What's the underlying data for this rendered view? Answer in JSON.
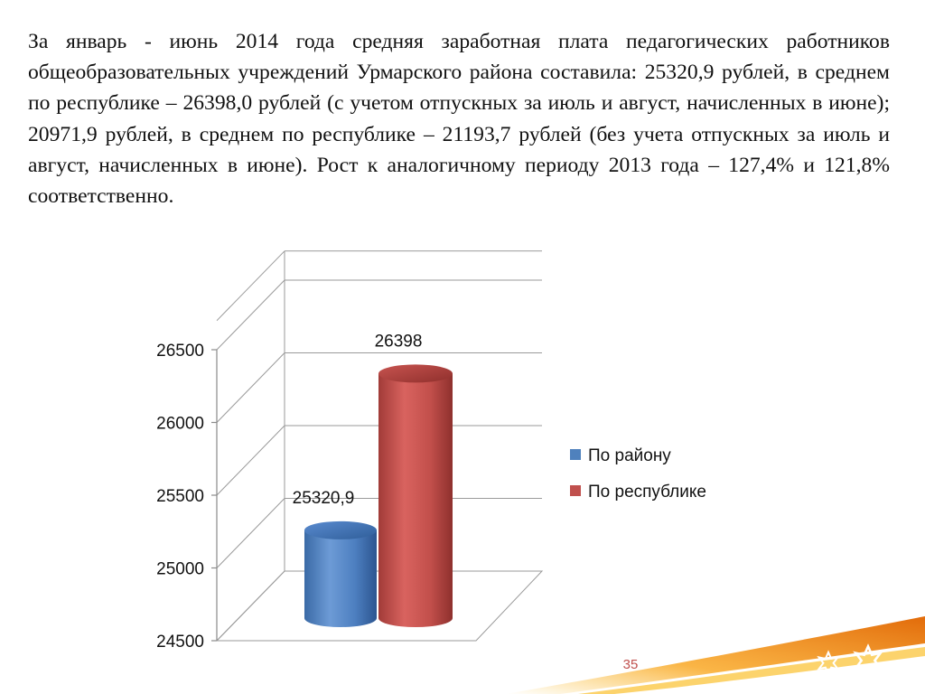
{
  "paragraph": "За январь - июнь 2014 года средняя заработная плата педагогических работников общеобразовательных учреждений Урмарского района составила: 25320,9 рублей, в среднем по республике – 26398,0 рублей (с учетом отпускных за июль и август, начисленных в июне); 20971,9 рублей, в среднем по республике – 21193,7 рублей (без учета отпускных за июль и август, начисленных в июне). Рост к аналогичному периоду 2013 года – 127,4% и 121,8% соответственно.",
  "page_number": "35",
  "chart_data": {
    "type": "bar",
    "style": "3d-cylinder",
    "title": "",
    "xlabel": "",
    "ylabel": "",
    "ylim": [
      24500,
      26700
    ],
    "yticks": [
      24500,
      25000,
      25500,
      26000,
      26500
    ],
    "ytick_labels": [
      "24500",
      "25000",
      "25500",
      "26000",
      "26500"
    ],
    "grid": true,
    "legend_position": "right",
    "series": [
      {
        "name": "По району",
        "value": 25320.9,
        "label": "25320,9",
        "color": "#4f81bd"
      },
      {
        "name": "По республике",
        "value": 26398,
        "label": "26398",
        "color": "#c0504d"
      }
    ]
  },
  "decoration": {
    "swoosh_colors": [
      "#e26b0a",
      "#f9a825",
      "#fbc02d"
    ],
    "star_color": "#ffffff"
  }
}
